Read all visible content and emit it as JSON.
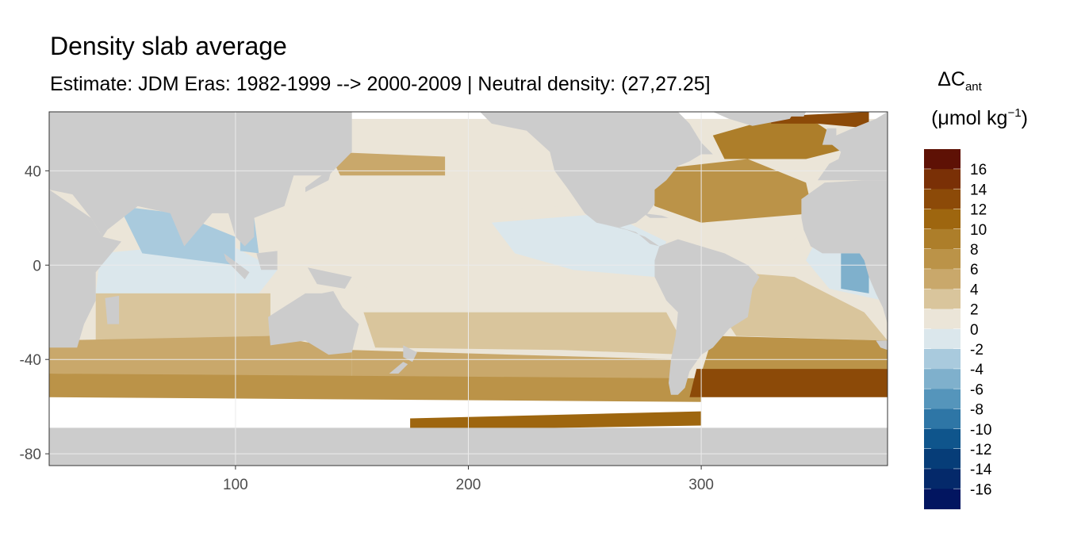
{
  "title": "Density slab average",
  "subtitle": "Estimate: JDM Eras: 1982-1999 --> 2000-2009 | Neutral density: (27,27.25]",
  "legend": {
    "symbol": "ΔC",
    "subscript": "ant",
    "unit_open": "(μmol kg",
    "unit_sup": "−1",
    "unit_close": ")",
    "bins": [
      {
        "label": "16",
        "color": "#5e1105"
      },
      {
        "label": "14",
        "color": "#7a3006"
      },
      {
        "label": "12",
        "color": "#8c4a08"
      },
      {
        "label": "10",
        "color": "#9e660f"
      },
      {
        "label": "8",
        "color": "#ad7e2a"
      },
      {
        "label": "6",
        "color": "#bb9348"
      },
      {
        "label": "4",
        "color": "#c9a86b"
      },
      {
        "label": "2",
        "color": "#d9c59c"
      },
      {
        "label": "0",
        "color": "#ebe5d8"
      },
      {
        "label": "-2",
        "color": "#dbe7ec"
      },
      {
        "label": "-4",
        "color": "#a9cadd"
      },
      {
        "label": "-6",
        "color": "#7fb0cc"
      },
      {
        "label": "-8",
        "color": "#5595bb"
      },
      {
        "label": "-10",
        "color": "#2e76a6"
      },
      {
        "label": "-12",
        "color": "#0f558c"
      },
      {
        "label": "-14",
        "color": "#063d78"
      },
      {
        "label": "-16",
        "color": "#04296a"
      },
      {
        "label": "",
        "color": "#021560"
      }
    ]
  },
  "chart_data": {
    "type": "heatmap",
    "title": "Density slab average",
    "subtitle": "Estimate: JDM Eras: 1982-1999 --> 2000-2009 | Neutral density: (27,27.25]",
    "xlabel": "",
    "ylabel": "",
    "xlim": [
      20,
      380
    ],
    "ylim": [
      -85,
      65
    ],
    "x_ticks": [
      100,
      200,
      300
    ],
    "y_ticks": [
      40,
      0,
      -40,
      -80
    ],
    "grid": true,
    "land_color": "#cccccc",
    "no_data_color": "#ffffff",
    "panel_background": "#ffffff",
    "legend_position": "right",
    "regions": [
      {
        "name": "pacific-tropics",
        "value": 1,
        "polygon": [
          [
            135,
            10
          ],
          [
            205,
            18
          ],
          [
            275,
            14
          ],
          [
            285,
            2
          ],
          [
            270,
            -10
          ],
          [
            180,
            -15
          ],
          [
            150,
            -8
          ]
        ]
      },
      {
        "name": "central-pacific-negative",
        "value": -1,
        "polygon": [
          [
            210,
            18
          ],
          [
            260,
            22
          ],
          [
            285,
            10
          ],
          [
            280,
            -5
          ],
          [
            245,
            -2
          ],
          [
            220,
            5
          ]
        ]
      },
      {
        "name": "north-pacific",
        "value": 1,
        "polygon": [
          [
            140,
            55
          ],
          [
            200,
            60
          ],
          [
            235,
            58
          ],
          [
            250,
            40
          ],
          [
            245,
            25
          ],
          [
            180,
            22
          ],
          [
            140,
            30
          ]
        ]
      },
      {
        "name": "kuroshio-band",
        "value": 4,
        "polygon": [
          [
            140,
            48
          ],
          [
            190,
            46
          ],
          [
            190,
            38
          ],
          [
            145,
            38
          ]
        ]
      },
      {
        "name": "south-pacific-mid",
        "value": 3,
        "polygon": [
          [
            155,
            -20
          ],
          [
            285,
            -20
          ],
          [
            295,
            -38
          ],
          [
            240,
            -36
          ],
          [
            160,
            -35
          ]
        ]
      },
      {
        "name": "south-pacific-deep",
        "value": 5,
        "polygon": [
          [
            150,
            -36
          ],
          [
            290,
            -40
          ],
          [
            295,
            -50
          ],
          [
            150,
            -50
          ]
        ]
      },
      {
        "name": "indian-tropics",
        "value": -1,
        "polygon": [
          [
            42,
            5
          ],
          [
            95,
            10
          ],
          [
            118,
            -2
          ],
          [
            110,
            -12
          ],
          [
            40,
            -12
          ]
        ]
      },
      {
        "name": "arabian-sea",
        "value": -3,
        "polygon": [
          [
            50,
            25
          ],
          [
            75,
            22
          ],
          [
            100,
            12
          ],
          [
            100,
            0
          ],
          [
            60,
            5
          ]
        ]
      },
      {
        "name": "bay-of-bengal",
        "value": -3,
        "polygon": [
          [
            102,
            22
          ],
          [
            108,
            20
          ],
          [
            110,
            5
          ],
          [
            102,
            6
          ]
        ]
      },
      {
        "name": "indian-south-mid",
        "value": 2,
        "polygon": [
          [
            40,
            -12
          ],
          [
            115,
            -12
          ],
          [
            115,
            -30
          ],
          [
            40,
            -32
          ]
        ]
      },
      {
        "name": "indian-south-deep",
        "value": 4,
        "polygon": [
          [
            20,
            -32
          ],
          [
            115,
            -30
          ],
          [
            150,
            -36
          ],
          [
            150,
            -48
          ],
          [
            20,
            -46
          ]
        ]
      },
      {
        "name": "southern-ocean-band",
        "value": 7,
        "polygon": [
          [
            20,
            -46
          ],
          [
            300,
            -48
          ],
          [
            300,
            -58
          ],
          [
            20,
            -56
          ]
        ]
      },
      {
        "name": "south-atlantic-mid",
        "value": 2,
        "polygon": [
          [
            300,
            -2
          ],
          [
            340,
            -5
          ],
          [
            370,
            -20
          ],
          [
            380,
            -32
          ],
          [
            315,
            -30
          ],
          [
            305,
            -15
          ]
        ]
      },
      {
        "name": "south-atlantic-deep",
        "value": 7,
        "polygon": [
          [
            305,
            -30
          ],
          [
            380,
            -32
          ],
          [
            380,
            -44
          ],
          [
            300,
            -46
          ]
        ]
      },
      {
        "name": "south-atlantic-max",
        "value": 13,
        "polygon": [
          [
            298,
            -44
          ],
          [
            380,
            -44
          ],
          [
            380,
            -56
          ],
          [
            295,
            -56
          ]
        ]
      },
      {
        "name": "tropical-atlantic",
        "value": 1,
        "polygon": [
          [
            300,
            10
          ],
          [
            335,
            28
          ],
          [
            350,
            22
          ],
          [
            335,
            5
          ],
          [
            310,
            -2
          ]
        ]
      },
      {
        "name": "east-atlantic-negative",
        "value": -2,
        "polygon": [
          [
            350,
            12
          ],
          [
            378,
            5
          ],
          [
            378,
            -15
          ],
          [
            355,
            -10
          ],
          [
            345,
            2
          ]
        ]
      },
      {
        "name": "guinea-negative",
        "value": -5,
        "polygon": [
          [
            360,
            5
          ],
          [
            372,
            5
          ],
          [
            372,
            -12
          ],
          [
            360,
            -10
          ]
        ]
      },
      {
        "name": "north-atlantic-subtropics",
        "value": 6,
        "polygon": [
          [
            275,
            40
          ],
          [
            320,
            45
          ],
          [
            345,
            35
          ],
          [
            348,
            22
          ],
          [
            300,
            18
          ],
          [
            280,
            25
          ]
        ]
      },
      {
        "name": "north-atlantic-subpolar",
        "value": 9,
        "polygon": [
          [
            305,
            55
          ],
          [
            330,
            62
          ],
          [
            350,
            60
          ],
          [
            365,
            50
          ],
          [
            345,
            45
          ],
          [
            310,
            45
          ]
        ]
      },
      {
        "name": "nordic-seas",
        "value": 12,
        "polygon": [
          [
            330,
            63
          ],
          [
            372,
            65
          ],
          [
            372,
            58
          ],
          [
            350,
            60
          ],
          [
            330,
            60
          ]
        ]
      },
      {
        "name": "weddell-shelf",
        "value": 11,
        "polygon": [
          [
            175,
            -65
          ],
          [
            300,
            -62
          ],
          [
            300,
            -68
          ],
          [
            175,
            -70
          ]
        ]
      }
    ]
  }
}
